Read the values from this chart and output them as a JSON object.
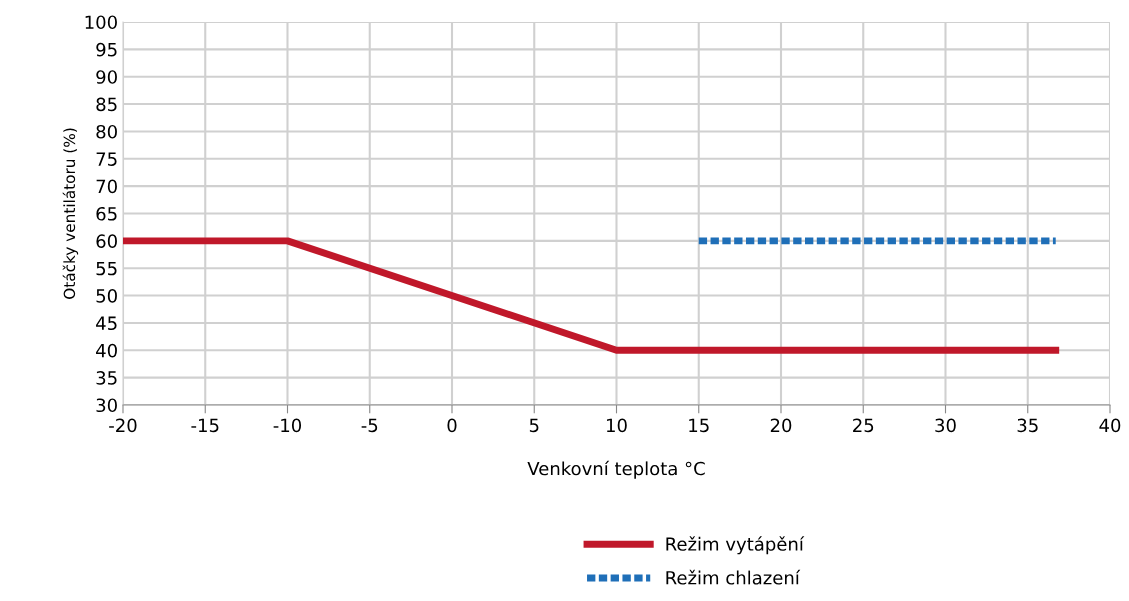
{
  "chart_data": {
    "type": "line",
    "xlabel": "Venkovní teplota °C",
    "ylabel": "Otáčky ventilátoru (%)",
    "xlim": [
      -20,
      40
    ],
    "xticks": [
      -20,
      -15,
      -10,
      -5,
      0,
      5,
      10,
      15,
      20,
      25,
      30,
      35,
      40
    ],
    "ylim": [
      30,
      100
    ],
    "yticks": [
      30,
      35,
      40,
      45,
      50,
      55,
      60,
      65,
      70,
      75,
      80,
      85,
      90,
      95,
      100
    ],
    "grid": true,
    "legend": "bottom",
    "marker": "none",
    "series": [
      {
        "name": "Režim vytápění",
        "color": "#c0182a",
        "line_style": "solid",
        "x": [
          -20,
          -10,
          10,
          36.7
        ],
        "values": [
          60,
          60,
          40,
          40
        ]
      },
      {
        "name": "Režim chlazení",
        "color": "#1f6fb8",
        "line_style": "dotted",
        "x": [
          15,
          36.7
        ],
        "values": [
          60,
          60
        ]
      }
    ]
  }
}
